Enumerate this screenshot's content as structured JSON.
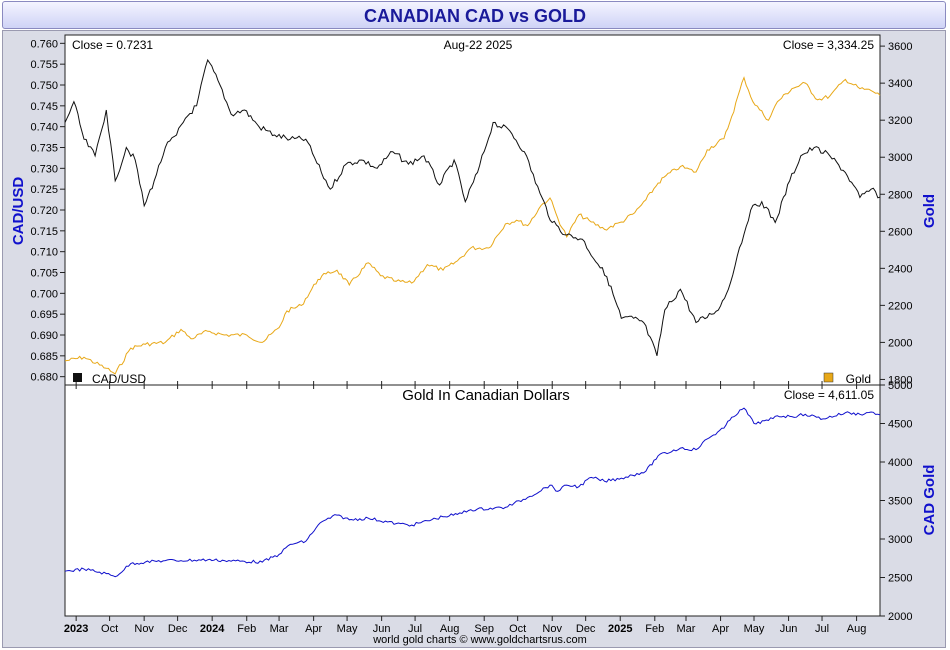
{
  "title": "CANADIAN CAD vs GOLD",
  "footer": "world gold charts © www.goldchartsrus.com",
  "top_panel": {
    "close_left": "Close = 0.7231",
    "date": "Aug-22  2025",
    "close_right": "Close = 3,334.25",
    "ylabel_left": "CAD/USD",
    "ylabel_right": "Gold",
    "legend_left": "CAD/USD",
    "legend_right": "Gold"
  },
  "bottom_panel": {
    "title": "Gold In Canadian Dollars",
    "close": "Close = 4,611.05",
    "ylabel_right": "CAD Gold"
  },
  "colors": {
    "cad": "#111111",
    "gold": "#e8a818",
    "cadgold": "#1010cc",
    "title": "#1a1a9a",
    "axis_label": "#1010cc"
  },
  "chart_data": [
    {
      "type": "line",
      "title": "",
      "x_tick_labels": [
        "2023",
        "Oct",
        "Nov",
        "Dec",
        "2024",
        "Feb",
        "Mar",
        "Apr",
        "May",
        "Jun",
        "Jul",
        "Aug",
        "Sep",
        "Oct",
        "Nov",
        "Dec",
        "2025",
        "Feb",
        "Mar",
        "Apr",
        "May",
        "Jun",
        "Jul",
        "Aug"
      ],
      "x_range": [
        "2023-08-22",
        "2025-08-22"
      ],
      "ylabel": "CAD/USD",
      "y2label": "Gold",
      "ylim": [
        0.678,
        0.762
      ],
      "y_ticks": [
        0.68,
        0.685,
        0.69,
        0.695,
        0.7,
        0.705,
        0.71,
        0.715,
        0.72,
        0.725,
        0.73,
        0.735,
        0.74,
        0.745,
        0.75,
        0.755,
        0.76
      ],
      "y2lim": [
        1770,
        3660
      ],
      "y2_ticks": [
        1800,
        2000,
        2200,
        2400,
        2600,
        2800,
        3000,
        3200,
        3400,
        3600
      ],
      "legend": "bottom",
      "series": [
        {
          "name": "CAD/USD",
          "axis": "left",
          "x": [
            "2023-08-22",
            "2023-08-30",
            "2023-09-08",
            "2023-09-18",
            "2023-09-28",
            "2023-10-06",
            "2023-10-16",
            "2023-10-24",
            "2023-11-01",
            "2023-11-10",
            "2023-11-20",
            "2023-11-30",
            "2023-12-08",
            "2023-12-18",
            "2023-12-28",
            "2024-01-08",
            "2024-01-18",
            "2024-01-30",
            "2024-02-12",
            "2024-02-26",
            "2024-03-11",
            "2024-03-25",
            "2024-04-08",
            "2024-04-16",
            "2024-04-30",
            "2024-05-14",
            "2024-05-28",
            "2024-06-11",
            "2024-06-25",
            "2024-07-09",
            "2024-07-23",
            "2024-08-05",
            "2024-08-15",
            "2024-08-26",
            "2024-09-09",
            "2024-09-24",
            "2024-10-07",
            "2024-10-21",
            "2024-11-01",
            "2024-11-14",
            "2024-11-28",
            "2024-12-12",
            "2024-12-20",
            "2025-01-02",
            "2025-01-13",
            "2025-01-22",
            "2025-02-03",
            "2025-02-10",
            "2025-02-24",
            "2025-03-10",
            "2025-03-24",
            "2025-04-01",
            "2025-04-08",
            "2025-04-16",
            "2025-04-28",
            "2025-05-08",
            "2025-05-20",
            "2025-06-02",
            "2025-06-12",
            "2025-06-24",
            "2025-07-08",
            "2025-07-22",
            "2025-08-04",
            "2025-08-14",
            "2025-08-22"
          ],
          "values": [
            0.741,
            0.746,
            0.737,
            0.733,
            0.744,
            0.727,
            0.735,
            0.732,
            0.721,
            0.727,
            0.735,
            0.738,
            0.742,
            0.745,
            0.756,
            0.75,
            0.743,
            0.744,
            0.74,
            0.738,
            0.737,
            0.737,
            0.729,
            0.725,
            0.731,
            0.732,
            0.73,
            0.734,
            0.731,
            0.733,
            0.726,
            0.732,
            0.722,
            0.729,
            0.741,
            0.739,
            0.734,
            0.724,
            0.717,
            0.714,
            0.713,
            0.707,
            0.704,
            0.694,
            0.694,
            0.693,
            0.685,
            0.696,
            0.701,
            0.693,
            0.695,
            0.697,
            0.701,
            0.709,
            0.72,
            0.722,
            0.717,
            0.727,
            0.733,
            0.735,
            0.733,
            0.729,
            0.723,
            0.725,
            0.7231
          ]
        },
        {
          "name": "Gold",
          "axis": "right",
          "x": [
            "2023-08-22",
            "2023-09-08",
            "2023-09-28",
            "2023-10-06",
            "2023-10-20",
            "2023-11-02",
            "2023-11-20",
            "2023-12-04",
            "2023-12-13",
            "2023-12-28",
            "2024-01-12",
            "2024-02-01",
            "2024-02-15",
            "2024-03-01",
            "2024-03-08",
            "2024-03-21",
            "2024-04-05",
            "2024-04-12",
            "2024-04-22",
            "2024-05-03",
            "2024-05-20",
            "2024-05-31",
            "2024-06-14",
            "2024-06-28",
            "2024-07-12",
            "2024-07-26",
            "2024-08-08",
            "2024-08-20",
            "2024-09-05",
            "2024-09-20",
            "2024-09-30",
            "2024-10-10",
            "2024-10-22",
            "2024-10-30",
            "2024-11-06",
            "2024-11-14",
            "2024-11-25",
            "2024-12-06",
            "2024-12-18",
            "2025-01-02",
            "2025-01-14",
            "2025-01-24",
            "2025-02-04",
            "2025-02-11",
            "2025-02-24",
            "2025-03-10",
            "2025-03-20",
            "2025-04-04",
            "2025-04-11",
            "2025-04-22",
            "2025-04-30",
            "2025-05-14",
            "2025-05-22",
            "2025-06-04",
            "2025-06-16",
            "2025-06-27",
            "2025-07-08",
            "2025-07-22",
            "2025-08-04",
            "2025-08-14",
            "2025-08-22"
          ],
          "values": [
            1900,
            1920,
            1860,
            1830,
            1970,
            1990,
            2000,
            2070,
            2020,
            2060,
            2040,
            2040,
            2000,
            2080,
            2170,
            2200,
            2340,
            2370,
            2390,
            2310,
            2430,
            2360,
            2330,
            2320,
            2420,
            2390,
            2440,
            2510,
            2510,
            2640,
            2660,
            2630,
            2740,
            2780,
            2670,
            2570,
            2690,
            2650,
            2610,
            2650,
            2700,
            2770,
            2860,
            2900,
            2950,
            2920,
            3040,
            3100,
            3220,
            3430,
            3300,
            3200,
            3300,
            3370,
            3400,
            3310,
            3330,
            3420,
            3370,
            3360,
            3334.25
          ]
        }
      ]
    },
    {
      "type": "line",
      "title": "Gold In Canadian Dollars",
      "x_range": [
        "2023-08-22",
        "2025-08-22"
      ],
      "ylabel": "CAD Gold",
      "ylim": [
        2000,
        5000
      ],
      "y_ticks": [
        2000,
        2500,
        3000,
        3500,
        4000,
        4500,
        5000
      ],
      "series": [
        {
          "name": "Gold In Canadian Dollars",
          "x": [
            "2023-08-22",
            "2023-09-08",
            "2023-09-28",
            "2023-10-06",
            "2023-10-20",
            "2023-11-02",
            "2023-11-20",
            "2023-12-04",
            "2023-12-28",
            "2024-01-12",
            "2024-02-15",
            "2024-03-01",
            "2024-03-11",
            "2024-03-25",
            "2024-04-05",
            "2024-04-12",
            "2024-04-22",
            "2024-05-03",
            "2024-05-20",
            "2024-06-14",
            "2024-06-28",
            "2024-07-26",
            "2024-08-08",
            "2024-08-20",
            "2024-09-20",
            "2024-10-10",
            "2024-10-30",
            "2024-11-06",
            "2024-11-14",
            "2024-11-25",
            "2024-12-06",
            "2024-12-18",
            "2025-01-02",
            "2025-01-24",
            "2025-02-04",
            "2025-02-24",
            "2025-03-10",
            "2025-03-20",
            "2025-04-04",
            "2025-04-11",
            "2025-04-22",
            "2025-05-01",
            "2025-05-14",
            "2025-05-22",
            "2025-06-04",
            "2025-06-16",
            "2025-07-02",
            "2025-07-22",
            "2025-08-04",
            "2025-08-14",
            "2025-08-22"
          ],
          "values": [
            2580,
            2610,
            2550,
            2510,
            2680,
            2700,
            2720,
            2720,
            2730,
            2720,
            2700,
            2800,
            2930,
            2970,
            3180,
            3250,
            3310,
            3250,
            3270,
            3200,
            3180,
            3290,
            3320,
            3380,
            3410,
            3540,
            3700,
            3620,
            3700,
            3680,
            3800,
            3750,
            3790,
            3880,
            4080,
            4180,
            4160,
            4300,
            4440,
            4580,
            4700,
            4500,
            4540,
            4600,
            4590,
            4620,
            4560,
            4640,
            4620,
            4650,
            4611.05
          ]
        }
      ]
    }
  ]
}
